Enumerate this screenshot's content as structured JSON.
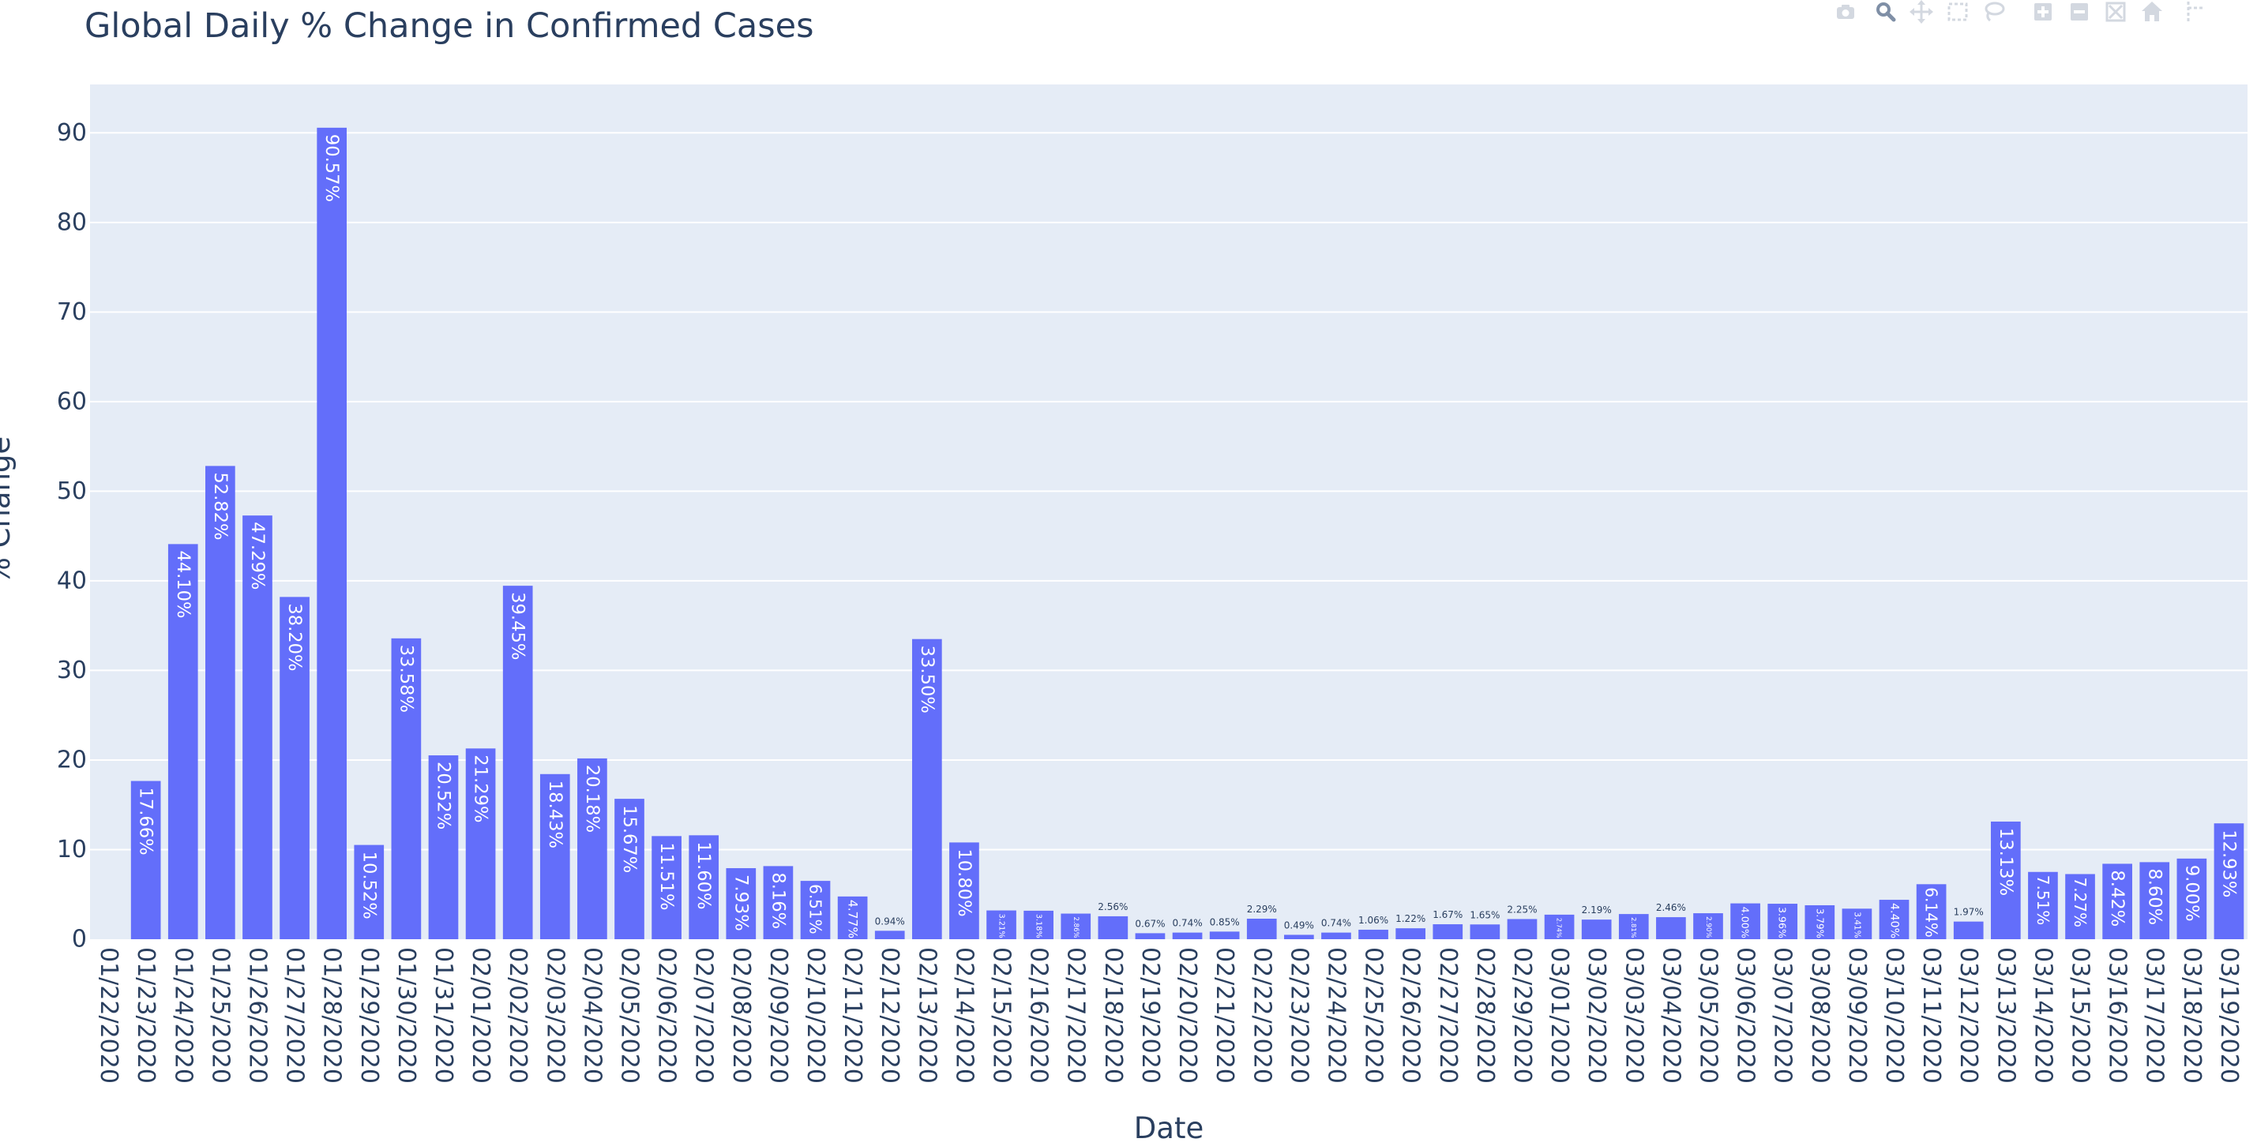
{
  "chart_data": {
    "type": "bar",
    "title": "Global Daily % Change in Confirmed Cases",
    "xlabel": "Date",
    "ylabel": "% Change",
    "ylim": [
      0,
      95.4
    ],
    "yticks": [
      0,
      10,
      20,
      30,
      40,
      50,
      60,
      70,
      80,
      90
    ],
    "grid": true,
    "legend": "none",
    "bar_color": "#636efa",
    "plot_background": "#e5ecf6",
    "categories": [
      "01/22/2020",
      "01/23/2020",
      "01/24/2020",
      "01/25/2020",
      "01/26/2020",
      "01/27/2020",
      "01/28/2020",
      "01/29/2020",
      "01/30/2020",
      "01/31/2020",
      "02/01/2020",
      "02/02/2020",
      "02/03/2020",
      "02/04/2020",
      "02/05/2020",
      "02/06/2020",
      "02/07/2020",
      "02/08/2020",
      "02/09/2020",
      "02/10/2020",
      "02/11/2020",
      "02/12/2020",
      "02/13/2020",
      "02/14/2020",
      "02/15/2020",
      "02/16/2020",
      "02/17/2020",
      "02/18/2020",
      "02/19/2020",
      "02/20/2020",
      "02/21/2020",
      "02/22/2020",
      "02/23/2020",
      "02/24/2020",
      "02/25/2020",
      "02/26/2020",
      "02/27/2020",
      "02/28/2020",
      "02/29/2020",
      "03/01/2020",
      "03/02/2020",
      "03/03/2020",
      "03/04/2020",
      "03/05/2020",
      "03/06/2020",
      "03/07/2020",
      "03/08/2020",
      "03/09/2020",
      "03/10/2020",
      "03/11/2020",
      "03/12/2020",
      "03/13/2020",
      "03/14/2020",
      "03/15/2020",
      "03/16/2020",
      "03/17/2020",
      "03/18/2020",
      "03/19/2020"
    ],
    "values": [
      0,
      17.66,
      44.1,
      52.82,
      47.29,
      38.2,
      90.57,
      10.52,
      33.58,
      20.52,
      21.29,
      39.45,
      18.43,
      20.18,
      15.67,
      11.51,
      11.6,
      7.93,
      8.16,
      6.51,
      4.77,
      0.94,
      33.5,
      10.8,
      3.21,
      3.18,
      2.86,
      2.56,
      0.67,
      0.74,
      0.85,
      2.29,
      0.49,
      0.74,
      1.06,
      1.22,
      1.67,
      1.65,
      2.25,
      2.74,
      2.19,
      2.81,
      2.46,
      2.9,
      4.0,
      3.96,
      3.79,
      3.41,
      4.4,
      6.14,
      1.97,
      13.13,
      7.51,
      7.27,
      8.42,
      8.6,
      9.0,
      12.93
    ],
    "labels": [
      "",
      "17.66%",
      "44.10%",
      "52.82%",
      "47.29%",
      "38.20%",
      "90.57%",
      "10.52%",
      "33.58%",
      "20.52%",
      "21.29%",
      "39.45%",
      "18.43%",
      "20.18%",
      "15.67%",
      "11.51%",
      "11.60%",
      "7.93%",
      "8.16%",
      "6.51%",
      "4.77%",
      "0.94%",
      "33.50%",
      "10.80%",
      "3.21%",
      "3.18%",
      "2.86%",
      "2.56%",
      "0.67%",
      "0.74%",
      "0.85%",
      "2.29%",
      "0.49%",
      "0.74%",
      "1.06%",
      "1.22%",
      "1.67%",
      "1.65%",
      "2.25%",
      "2.74%",
      "2.19%",
      "2.81%",
      "2.46%",
      "2.90%",
      "4.00%",
      "3.96%",
      "3.79%",
      "3.41%",
      "4.40%",
      "6.14%",
      "1.97%",
      "13.13%",
      "7.51%",
      "7.27%",
      "8.42%",
      "8.60%",
      "9.00%",
      "12.93%"
    ]
  },
  "modebar": {
    "buttons": [
      {
        "name": "camera-icon"
      },
      {
        "name": "zoom-icon"
      },
      {
        "name": "pan-icon"
      },
      {
        "name": "box-select-icon"
      },
      {
        "name": "lasso-select-icon"
      },
      {
        "name": "zoom-in-icon"
      },
      {
        "name": "zoom-out-icon"
      },
      {
        "name": "autoscale-icon"
      },
      {
        "name": "home-icon"
      },
      {
        "name": "spike-lines-icon"
      }
    ],
    "icon_color": "#d3d8e0",
    "active_color": "#7f8fa6"
  }
}
